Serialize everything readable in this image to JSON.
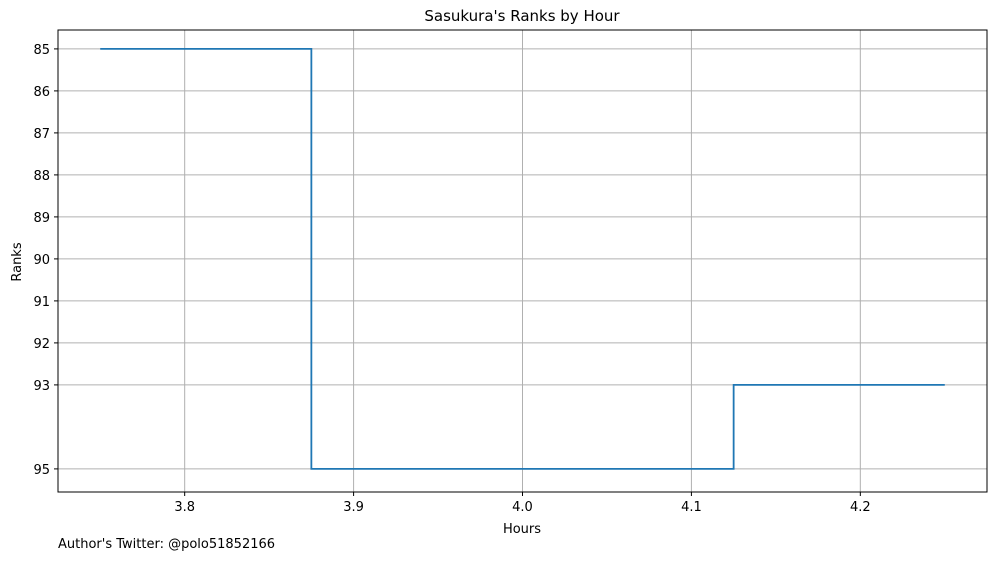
{
  "chart_data": {
    "type": "line",
    "step": "post",
    "title": "Sasukura's Ranks by Hour",
    "xlabel": "Hours",
    "ylabel": "Ranks",
    "x": [
      3.75,
      3.875,
      4.125,
      4.25
    ],
    "y": [
      85,
      95,
      93,
      93
    ],
    "xlim": [
      3.725,
      4.275
    ],
    "ylim": [
      95.55,
      84.55
    ],
    "y_inverted": true,
    "xticks": [
      3.8,
      3.9,
      4.0,
      4.1,
      4.2
    ],
    "xtick_labels": [
      "3.8",
      "3.9",
      "4.0",
      "4.1",
      "4.2"
    ],
    "yticks": [
      85,
      86,
      87,
      88,
      89,
      90,
      91,
      92,
      93,
      95
    ],
    "ytick_labels": [
      "85",
      "86",
      "87",
      "88",
      "89",
      "90",
      "91",
      "92",
      "93",
      "95"
    ],
    "grid": true,
    "line_color": "#1f77b4",
    "grid_color": "#b0b0b0"
  },
  "footer": {
    "credit": "Author's Twitter: @polo51852166"
  }
}
